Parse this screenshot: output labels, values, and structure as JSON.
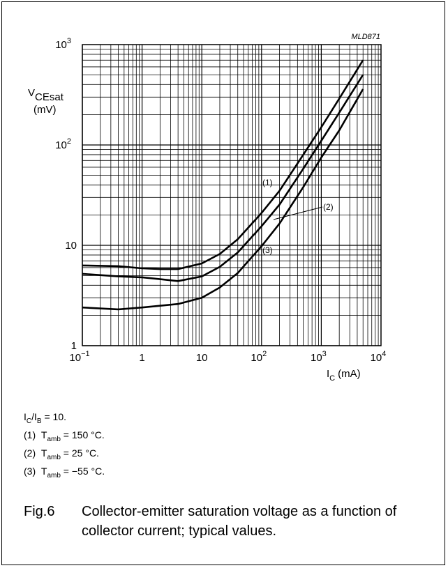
{
  "chart_data": {
    "type": "line",
    "code": "MLD871",
    "x_scale": "log",
    "y_scale": "log",
    "xlim": [
      0.1,
      10000
    ],
    "ylim": [
      1,
      1000
    ],
    "grid": true,
    "xlabel": {
      "main": "I",
      "sub": "C",
      "unit": "(mA)"
    },
    "ylabel": {
      "main": "V",
      "sub": "CEsat",
      "unit": "(mV)"
    },
    "x_ticks": [
      {
        "value": 0.1,
        "base": "10",
        "exp": "−1"
      },
      {
        "value": 1,
        "base": "1",
        "exp": ""
      },
      {
        "value": 10,
        "base": "10",
        "exp": ""
      },
      {
        "value": 100,
        "base": "10",
        "exp": "2"
      },
      {
        "value": 1000,
        "base": "10",
        "exp": "3"
      },
      {
        "value": 10000,
        "base": "10",
        "exp": "4"
      }
    ],
    "y_ticks": [
      {
        "value": 1,
        "base": "1",
        "exp": ""
      },
      {
        "value": 10,
        "base": "10",
        "exp": ""
      },
      {
        "value": 100,
        "base": "10",
        "exp": "2"
      },
      {
        "value": 1000,
        "base": "10",
        "exp": "3"
      }
    ],
    "series": [
      {
        "label": "(1)",
        "x": [
          0.1,
          0.4,
          1,
          2,
          4,
          10,
          20,
          40,
          100,
          200,
          500,
          1000,
          2000,
          5000
        ],
        "y": [
          6.3,
          6.2,
          5.9,
          5.8,
          5.8,
          6.6,
          8.2,
          11.5,
          21,
          35,
          80,
          150,
          290,
          700
        ]
      },
      {
        "label": "(2)",
        "x": [
          0.1,
          0.4,
          1,
          2,
          4,
          10,
          20,
          40,
          100,
          200,
          500,
          1000,
          2000,
          5000
        ],
        "y": [
          5.2,
          4.9,
          4.8,
          4.6,
          4.4,
          4.9,
          6.1,
          8.5,
          15.5,
          25.5,
          58,
          110,
          210,
          500
        ]
      },
      {
        "label": "(3)",
        "x": [
          0.1,
          0.4,
          1,
          2,
          4,
          10,
          20,
          40,
          100,
          200,
          500,
          1000,
          2000,
          5000
        ],
        "y": [
          2.4,
          2.3,
          2.4,
          2.5,
          2.6,
          3.0,
          3.8,
          5.3,
          9.8,
          16.5,
          38,
          75,
          140,
          360
        ]
      }
    ]
  },
  "notes": {
    "ratio": {
      "a": "I",
      "a_sub": "C",
      "sep": "/I",
      "b_sub": "B",
      "rest": " = 10."
    },
    "items": [
      {
        "num": "(1)",
        "pre": "T",
        "sub": "amb",
        "text": " = 150 °C."
      },
      {
        "num": "(2)",
        "pre": "T",
        "sub": "amb",
        "text": " = 25 °C."
      },
      {
        "num": "(3)",
        "pre": "T",
        "sub": "amb",
        "text": " = −55 °C."
      }
    ]
  },
  "caption": {
    "fig": "Fig.6",
    "text": "Collector-emitter saturation voltage as a function of collector current; typical values."
  }
}
